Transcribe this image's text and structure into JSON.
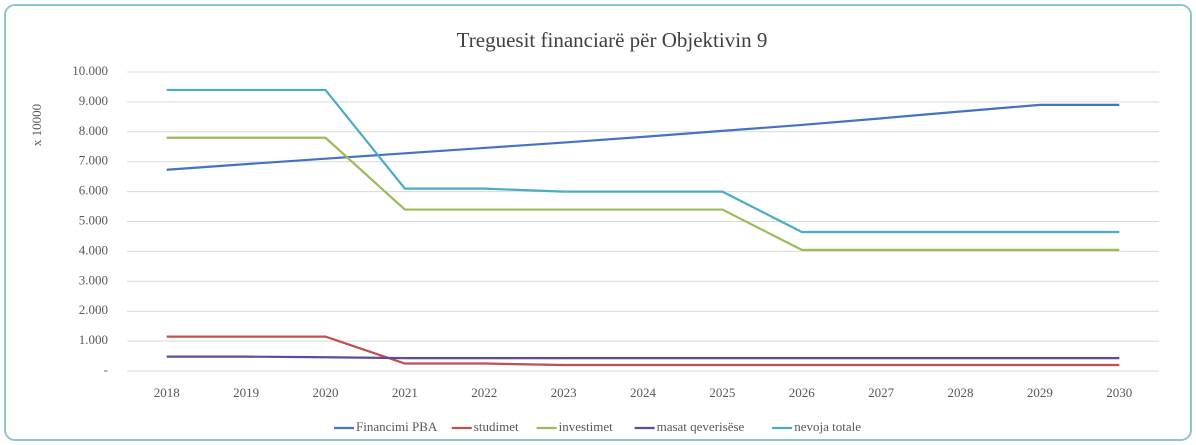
{
  "chart_data": {
    "type": "line",
    "title": "Treguesit financiarë për Objektivin 9",
    "y_label": "x 10000",
    "categories": [
      "2018",
      "2019",
      "2020",
      "2021",
      "2022",
      "2023",
      "2024",
      "2025",
      "2026",
      "2027",
      "2028",
      "2029",
      "2030"
    ],
    "series": [
      {
        "name": "Financimi PBA",
        "color": "#4472c4",
        "values": [
          6730,
          6920,
          7100,
          7280,
          7460,
          7640,
          7830,
          8030,
          8230,
          8450,
          8680,
          8900,
          8900
        ]
      },
      {
        "name": "studimet",
        "color": "#c0504d",
        "values": [
          1150,
          1150,
          1150,
          250,
          250,
          200,
          200,
          200,
          200,
          200,
          200,
          200,
          200
        ]
      },
      {
        "name": "investimet",
        "color": "#9bbb59",
        "values": [
          7800,
          7800,
          7800,
          5400,
          5400,
          5400,
          5400,
          5400,
          4050,
          4050,
          4050,
          4050,
          4050
        ]
      },
      {
        "name": "masat qeverisëse",
        "color": "#5f4b9b",
        "values": [
          480,
          480,
          460,
          430,
          430,
          430,
          430,
          430,
          430,
          430,
          430,
          430,
          430
        ]
      },
      {
        "name": "nevoja totale",
        "color": "#4bacc6",
        "values": [
          9400,
          9400,
          9400,
          6100,
          6100,
          6000,
          6000,
          6000,
          4650,
          4650,
          4650,
          4650,
          4650
        ]
      }
    ],
    "ylim": [
      0,
      10000
    ],
    "yticks": [
      {
        "value": 0,
        "label": "-"
      },
      {
        "value": 1000,
        "label": "1.000"
      },
      {
        "value": 2000,
        "label": "2.000"
      },
      {
        "value": 3000,
        "label": "3.000"
      },
      {
        "value": 4000,
        "label": "4.000"
      },
      {
        "value": 5000,
        "label": "5.000"
      },
      {
        "value": 6000,
        "label": "6.000"
      },
      {
        "value": 7000,
        "label": "7.000"
      },
      {
        "value": 8000,
        "label": "8.000"
      },
      {
        "value": 9000,
        "label": "9.000"
      },
      {
        "value": 10000,
        "label": "10.000"
      }
    ],
    "grid": true,
    "legend": "bottom"
  }
}
